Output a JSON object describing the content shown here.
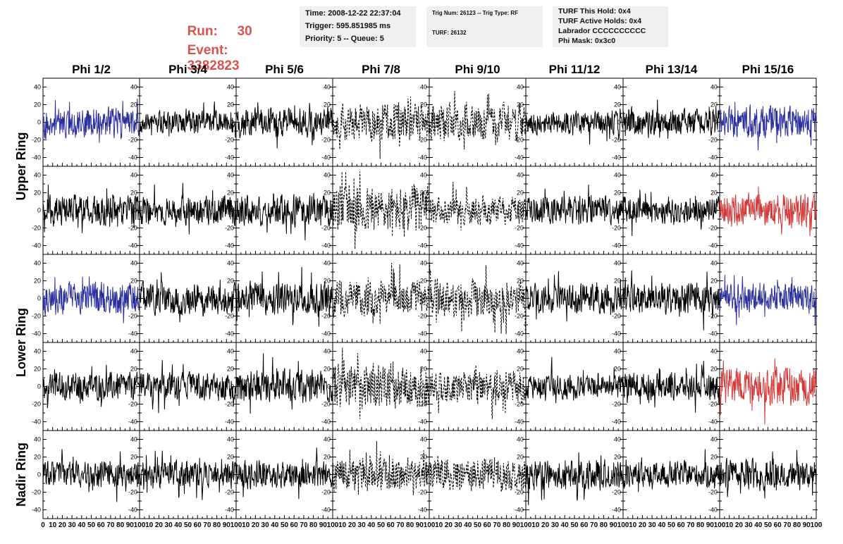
{
  "header": {
    "run_label": "Run:",
    "run_value": "30",
    "event_label": "Event:",
    "event_value": "3382823",
    "box1": {
      "time": "Time: 2008-12-22 22:37:04",
      "trigger": "Trigger: 595.851985 ms",
      "priority": "Priority: 5 -- Queue: 5"
    },
    "box2": {
      "trig": "Trig Num: 26123 -- Trig Type: RF",
      "turf": "TURF: 26132"
    },
    "box3": {
      "hold": "TURF This Hold: 0x4",
      "active": "TURF Active Holds: 0x4",
      "labrador": "Labrador CCCCCCCCCC",
      "phimask": "Phi Mask: 0x3c0"
    }
  },
  "colors": {
    "header_text": "#d9534f",
    "info_box_bg": "#f0f0f0",
    "trace_black": "#000000",
    "trace_blue": "#2b2f9e",
    "trace_red": "#d43a3a"
  },
  "chart_data": {
    "type": "line",
    "columns": [
      "Phi 1/2",
      "Phi 3/4",
      "Phi 5/6",
      "Phi 7/8",
      "Phi 9/10",
      "Phi 11/12",
      "Phi 13/14",
      "Phi 15/16"
    ],
    "rows": [
      {
        "label": "Upper Ring",
        "span": 2
      },
      {
        "label": "Lower Ring",
        "span": 2
      },
      {
        "label": "Nadir Ring",
        "span": 1
      }
    ],
    "xlim": [
      0,
      100
    ],
    "ylim": [
      -50,
      50
    ],
    "x_ticks": [
      "0",
      "10",
      "20",
      "30",
      "40",
      "50",
      "60",
      "70",
      "80",
      "90",
      "100"
    ],
    "y_ticks": [
      "40",
      "20",
      "0",
      "-20",
      "-40"
    ],
    "samples_per_trace": 260,
    "panels": [
      [
        {
          "color": "blue",
          "style": "solid",
          "amp": 14,
          "seed": 11
        },
        {
          "color": "black",
          "style": "solid",
          "amp": 10,
          "seed": 12
        },
        {
          "color": "black",
          "style": "solid",
          "amp": 14,
          "seed": 13
        },
        {
          "color": "black",
          "style": "dashed",
          "amp": 17,
          "seed": 14
        },
        {
          "color": "black",
          "style": "dashed",
          "amp": 17,
          "seed": 15
        },
        {
          "color": "black",
          "style": "solid",
          "amp": 11,
          "seed": 16
        },
        {
          "color": "black",
          "style": "solid",
          "amp": 12,
          "seed": 17
        },
        {
          "color": "blue",
          "style": "solid",
          "amp": 15,
          "seed": 18
        }
      ],
      [
        {
          "color": "black",
          "style": "solid",
          "amp": 14,
          "seed": 21
        },
        {
          "color": "black",
          "style": "solid",
          "amp": 13,
          "seed": 22
        },
        {
          "color": "black",
          "style": "solid",
          "amp": 14,
          "seed": 23
        },
        {
          "color": "black",
          "style": "dashed",
          "amp": 21,
          "seed": 24
        },
        {
          "color": "black",
          "style": "dashed",
          "amp": 13,
          "seed": 25
        },
        {
          "color": "black",
          "style": "solid",
          "amp": 13,
          "seed": 26
        },
        {
          "color": "black",
          "style": "solid",
          "amp": 12,
          "seed": 27
        },
        {
          "color": "red",
          "style": "solid",
          "amp": 16,
          "seed": 28
        }
      ],
      [
        {
          "color": "blue",
          "style": "solid",
          "amp": 15,
          "seed": 31
        },
        {
          "color": "black",
          "style": "solid",
          "amp": 14,
          "seed": 32
        },
        {
          "color": "black",
          "style": "solid",
          "amp": 15,
          "seed": 33
        },
        {
          "color": "black",
          "style": "dashed",
          "amp": 16,
          "seed": 34
        },
        {
          "color": "black",
          "style": "dashed",
          "amp": 17,
          "seed": 35
        },
        {
          "color": "black",
          "style": "solid",
          "amp": 13,
          "seed": 36
        },
        {
          "color": "black",
          "style": "solid",
          "amp": 14,
          "seed": 37
        },
        {
          "color": "blue",
          "style": "solid",
          "amp": 13,
          "seed": 38
        }
      ],
      [
        {
          "color": "black",
          "style": "solid",
          "amp": 13,
          "seed": 41
        },
        {
          "color": "black",
          "style": "solid",
          "amp": 13,
          "seed": 42
        },
        {
          "color": "black",
          "style": "solid",
          "amp": 15,
          "seed": 43
        },
        {
          "color": "black",
          "style": "dashed",
          "amp": 20,
          "seed": 44
        },
        {
          "color": "black",
          "style": "dashed",
          "amp": 15,
          "seed": 45
        },
        {
          "color": "black",
          "style": "solid",
          "amp": 11,
          "seed": 46
        },
        {
          "color": "black",
          "style": "solid",
          "amp": 12,
          "seed": 47
        },
        {
          "color": "red",
          "style": "solid",
          "amp": 18,
          "seed": 48
        }
      ],
      [
        {
          "color": "black",
          "style": "solid",
          "amp": 12,
          "seed": 51
        },
        {
          "color": "black",
          "style": "solid",
          "amp": 12,
          "seed": 52
        },
        {
          "color": "black",
          "style": "solid",
          "amp": 13,
          "seed": 53
        },
        {
          "color": "black",
          "style": "dashed",
          "amp": 15,
          "seed": 54
        },
        {
          "color": "black",
          "style": "dashed",
          "amp": 15,
          "seed": 55
        },
        {
          "color": "black",
          "style": "solid",
          "amp": 14,
          "seed": 56
        },
        {
          "color": "black",
          "style": "solid",
          "amp": 12,
          "seed": 57
        },
        {
          "color": "black",
          "style": "solid",
          "amp": 14,
          "seed": 58
        }
      ]
    ]
  }
}
